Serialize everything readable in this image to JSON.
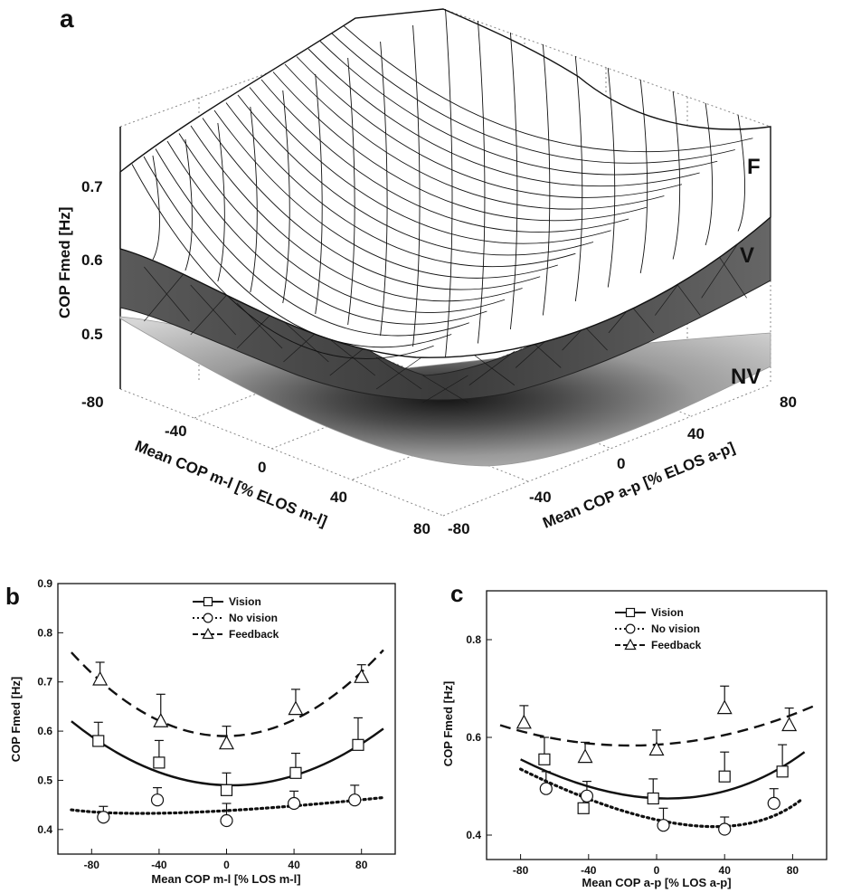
{
  "chart_data": [
    {
      "panel": "a",
      "type": "surface3d",
      "zlabel": "COP Fmed [Hz]",
      "xlabel": "Mean COP m-l [% ELOS m-l]",
      "ylabel": "Mean COP a-p [% ELOS a-p]",
      "z_ticks": [
        "0.5",
        "0.6",
        "0.7"
      ],
      "x_ticks": [
        "-80",
        "-40",
        "0",
        "40",
        "80"
      ],
      "y_ticks": [
        "-80",
        "-40",
        "0",
        "40",
        "80"
      ],
      "surfaces": [
        {
          "name": "F",
          "color": "#ffffff",
          "style": "wireframe"
        },
        {
          "name": "V",
          "color": "#555555",
          "style": "shaded"
        },
        {
          "name": "NV",
          "color": "#bdbdbd",
          "style": "gradient"
        }
      ]
    },
    {
      "panel": "b",
      "type": "line",
      "xlabel": "Mean COP m-l [% LOS m-l]",
      "ylabel": "COP Fmed [Hz]",
      "xlim": [
        -100,
        100
      ],
      "ylim": [
        0.35,
        0.9
      ],
      "x_ticks": [
        -80,
        -40,
        0,
        40,
        80
      ],
      "y_ticks": [
        0.4,
        0.5,
        0.6,
        0.7,
        0.8,
        0.9
      ],
      "series": [
        {
          "name": "Vision",
          "marker": "square",
          "line": "solid",
          "x": [
            -76,
            -40,
            0,
            41,
            78
          ],
          "y": [
            0.58,
            0.536,
            0.48,
            0.515,
            0.572
          ],
          "err": [
            0.038,
            0.045,
            0.035,
            0.04,
            0.055
          ],
          "fit": [
            -92,
            0.62,
            0,
            0.49,
            93,
            0.605
          ]
        },
        {
          "name": "No vision",
          "marker": "circle",
          "line": "dotted",
          "x": [
            -73,
            -41,
            0,
            40,
            76
          ],
          "y": [
            0.425,
            0.46,
            0.418,
            0.453,
            0.46
          ],
          "err": [
            0.022,
            0.025,
            0.035,
            0.025,
            0.03
          ],
          "fit": [
            -92,
            0.44,
            -20,
            0.435,
            93,
            0.465
          ]
        },
        {
          "name": "Feedback",
          "marker": "triangle",
          "line": "dashed",
          "x": [
            -75,
            -39,
            0,
            41,
            80
          ],
          "y": [
            0.705,
            0.62,
            0.575,
            0.645,
            0.71
          ],
          "err": [
            0.035,
            0.055,
            0.035,
            0.04,
            0.025
          ],
          "fit": [
            -92,
            0.76,
            0,
            0.59,
            93,
            0.765
          ]
        }
      ]
    },
    {
      "panel": "c",
      "type": "line",
      "xlabel": "Mean COP a-p [% LOS a-p]",
      "ylabel": "COP Fmed [Hz]",
      "xlim": [
        -100,
        100
      ],
      "ylim": [
        0.35,
        0.9
      ],
      "x_ticks": [
        -80,
        -40,
        0,
        40,
        80
      ],
      "y_ticks": [
        0.4,
        0.6,
        0.8
      ],
      "series": [
        {
          "name": "Vision",
          "marker": "square",
          "line": "solid",
          "x": [
            -66,
            -43,
            -2,
            40,
            74
          ],
          "y": [
            0.555,
            0.455,
            0.475,
            0.52,
            0.53
          ],
          "err": [
            0.045,
            0.03,
            0.04,
            0.05,
            0.055
          ],
          "fit": [
            -80,
            0.555,
            10,
            0.475,
            87,
            0.57
          ]
        },
        {
          "name": "No vision",
          "marker": "circle",
          "line": "dotted",
          "x": [
            -65,
            -41,
            4,
            40,
            69
          ],
          "y": [
            0.495,
            0.48,
            0.42,
            0.412,
            0.465
          ],
          "err": [
            0.035,
            0.03,
            0.035,
            0.025,
            0.03
          ],
          "fit": [
            -80,
            0.535,
            20,
            0.42,
            86,
            0.475
          ]
        },
        {
          "name": "Feedback",
          "marker": "triangle",
          "line": "dashed",
          "x": [
            -78,
            -42,
            0,
            40,
            78
          ],
          "y": [
            0.63,
            0.56,
            0.575,
            0.66,
            0.625
          ],
          "err": [
            0.035,
            0.03,
            0.04,
            0.045,
            0.035
          ],
          "fit": [
            -92,
            0.625,
            0,
            0.585,
            93,
            0.665
          ]
        }
      ]
    }
  ]
}
